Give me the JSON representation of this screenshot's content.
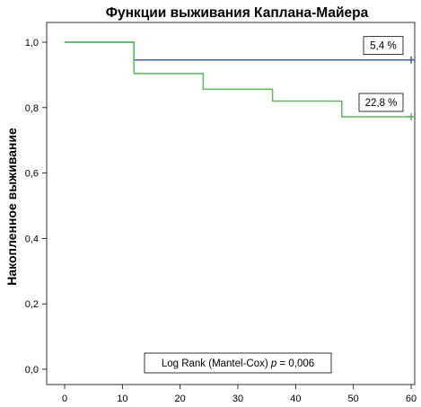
{
  "chart_data": {
    "type": "line",
    "title": "Функции выживания Каплана-Майера",
    "xlabel": "",
    "ylabel": "Накопленное выживание",
    "xlim": [
      0,
      60
    ],
    "ylim": [
      0.0,
      1.0
    ],
    "x_ticks": [
      "0",
      "10",
      "20",
      "30",
      "40",
      "50",
      "60"
    ],
    "y_ticks": [
      "0,0",
      "0,2",
      "0,4",
      "0,6",
      "0,8",
      "1,0"
    ],
    "grid": false,
    "step": true,
    "series": [
      {
        "color": "#4a5ea8",
        "x": [
          0,
          12,
          12,
          60
        ],
        "y": [
          1.0,
          1.0,
          0.946,
          0.946
        ],
        "censor_at": [
          [
            60,
            0.946
          ]
        ],
        "label_value": "5,4 %"
      },
      {
        "color": "#5cb85c",
        "x": [
          0,
          12,
          12,
          24,
          24,
          36,
          36,
          48,
          48,
          60
        ],
        "y": [
          1.0,
          1.0,
          0.904,
          0.904,
          0.856,
          0.856,
          0.82,
          0.82,
          0.772,
          0.772
        ],
        "censor_at": [
          [
            60,
            0.772
          ]
        ],
        "label_value": "22,8 %"
      }
    ],
    "annotation": {
      "prefix": "Log Rank (Mantel-Cox) ",
      "p_symbol": "p",
      "suffix": " = 0,006"
    }
  }
}
